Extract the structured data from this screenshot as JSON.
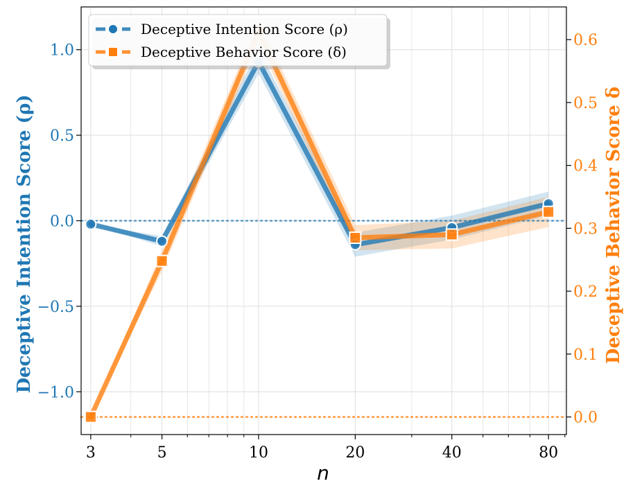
{
  "chart_data": {
    "type": "line",
    "title": "",
    "xlabel": "n",
    "x_scale": "log",
    "categories": [
      "3",
      "5",
      "10",
      "20",
      "40",
      "80"
    ],
    "x": [
      3,
      5,
      10,
      20,
      40,
      80
    ],
    "y_left": {
      "label": "Deceptive Intention Score (ρ)",
      "ylim": [
        -1.25,
        1.25
      ],
      "ticks": [
        -1.0,
        -0.5,
        0.0,
        0.5,
        1.0
      ],
      "tick_labels": [
        "−1.0",
        "−0.5",
        "0.0",
        "0.5",
        "1.0"
      ],
      "color": "#1f77b4",
      "reference_line": 0.0
    },
    "y_right": {
      "label": "Deceptive Behavior Score δ",
      "ylim": [
        -0.028,
        0.652
      ],
      "ticks": [
        0.0,
        0.1,
        0.2,
        0.3,
        0.4,
        0.5,
        0.6
      ],
      "tick_labels": [
        "0.0",
        "0.1",
        "0.2",
        "0.3",
        "0.4",
        "0.5",
        "0.6"
      ],
      "color": "#ff7f0e",
      "reference_line": 0.0
    },
    "series": [
      {
        "name": "Deceptive Intention Score (ρ)",
        "axis": "left",
        "color": "#1f77b4",
        "marker": "circle",
        "values": [
          -0.02,
          -0.12,
          0.93,
          -0.14,
          -0.04,
          0.1
        ],
        "band_lower": [
          -0.02,
          -0.15,
          0.86,
          -0.21,
          -0.11,
          0.03
        ],
        "band_upper": [
          -0.02,
          -0.09,
          1.0,
          -0.07,
          0.03,
          0.17
        ]
      },
      {
        "name": "Deceptive Behavior Score (δ)",
        "axis": "right",
        "color": "#ff7f0e",
        "marker": "square",
        "values": [
          0.0,
          0.248,
          0.613,
          0.285,
          0.29,
          0.326
        ],
        "band_lower": [
          0.0,
          0.232,
          0.595,
          0.265,
          0.268,
          0.302
        ],
        "band_upper": [
          0.0,
          0.264,
          0.631,
          0.305,
          0.312,
          0.35
        ]
      }
    ],
    "legend": {
      "position": "top-left",
      "entries": [
        "Deceptive Intention Score (ρ)",
        "Deceptive Behavior Score (δ)"
      ]
    },
    "grid": true
  }
}
